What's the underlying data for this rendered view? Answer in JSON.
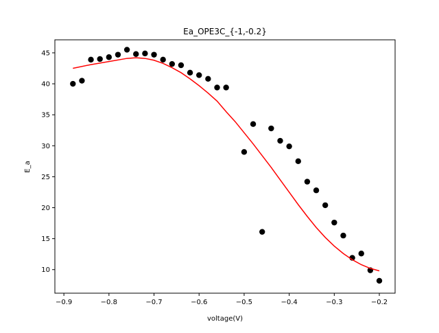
{
  "chart_data": {
    "type": "scatter",
    "title": "Ea_OPE3C_{-1,-0.2}",
    "xlabel": "voltage(V)",
    "ylabel": "E_a",
    "xlim": [
      -0.92,
      -0.165
    ],
    "ylim": [
      6.2,
      47.1
    ],
    "xticks": [
      -0.9,
      -0.8,
      -0.7,
      -0.6,
      -0.5,
      -0.4,
      -0.3,
      -0.2
    ],
    "xtick_labels": [
      "−0.9",
      "−0.8",
      "−0.7",
      "−0.6",
      "−0.5",
      "−0.4",
      "−0.3",
      "−0.2"
    ],
    "yticks": [
      10,
      15,
      20,
      25,
      30,
      35,
      40,
      45
    ],
    "ytick_labels": [
      "10",
      "15",
      "20",
      "25",
      "30",
      "35",
      "40",
      "45"
    ],
    "grid": false,
    "colors": {
      "points": "#000000",
      "fit": "#ff0000"
    },
    "series": [
      {
        "kind": "points",
        "x": [
          -0.88,
          -0.86,
          -0.84,
          -0.82,
          -0.8,
          -0.78,
          -0.76,
          -0.74,
          -0.72,
          -0.7,
          -0.68,
          -0.66,
          -0.64,
          -0.62,
          -0.6,
          -0.58,
          -0.56,
          -0.54,
          -0.5,
          -0.48,
          -0.46,
          -0.44,
          -0.42,
          -0.4,
          -0.38,
          -0.36,
          -0.34,
          -0.32,
          -0.3,
          -0.28,
          -0.26,
          -0.24,
          -0.22,
          -0.2
        ],
        "y": [
          40.0,
          40.5,
          43.9,
          44.0,
          44.3,
          44.7,
          45.5,
          44.8,
          44.9,
          44.7,
          43.9,
          43.2,
          43.0,
          41.8,
          41.4,
          40.8,
          39.4,
          39.4,
          29.0,
          33.5,
          16.1,
          32.8,
          30.8,
          29.9,
          27.5,
          24.2,
          22.8,
          20.4,
          17.6,
          15.5,
          11.9,
          12.6,
          9.9,
          8.2
        ]
      },
      {
        "kind": "line",
        "x": [
          -0.88,
          -0.84,
          -0.8,
          -0.76,
          -0.74,
          -0.72,
          -0.7,
          -0.68,
          -0.66,
          -0.64,
          -0.62,
          -0.6,
          -0.58,
          -0.56,
          -0.54,
          -0.52,
          -0.5,
          -0.48,
          -0.46,
          -0.44,
          -0.42,
          -0.4,
          -0.38,
          -0.36,
          -0.34,
          -0.32,
          -0.3,
          -0.28,
          -0.26,
          -0.24,
          -0.22,
          -0.2
        ],
        "y": [
          42.5,
          43.1,
          43.6,
          44.1,
          44.2,
          44.1,
          43.8,
          43.3,
          42.6,
          41.8,
          40.8,
          39.7,
          38.5,
          37.2,
          35.5,
          33.9,
          32.1,
          30.3,
          28.4,
          26.5,
          24.5,
          22.5,
          20.5,
          18.6,
          16.8,
          15.2,
          13.8,
          12.6,
          11.6,
          10.8,
          10.2,
          9.8
        ]
      }
    ]
  }
}
